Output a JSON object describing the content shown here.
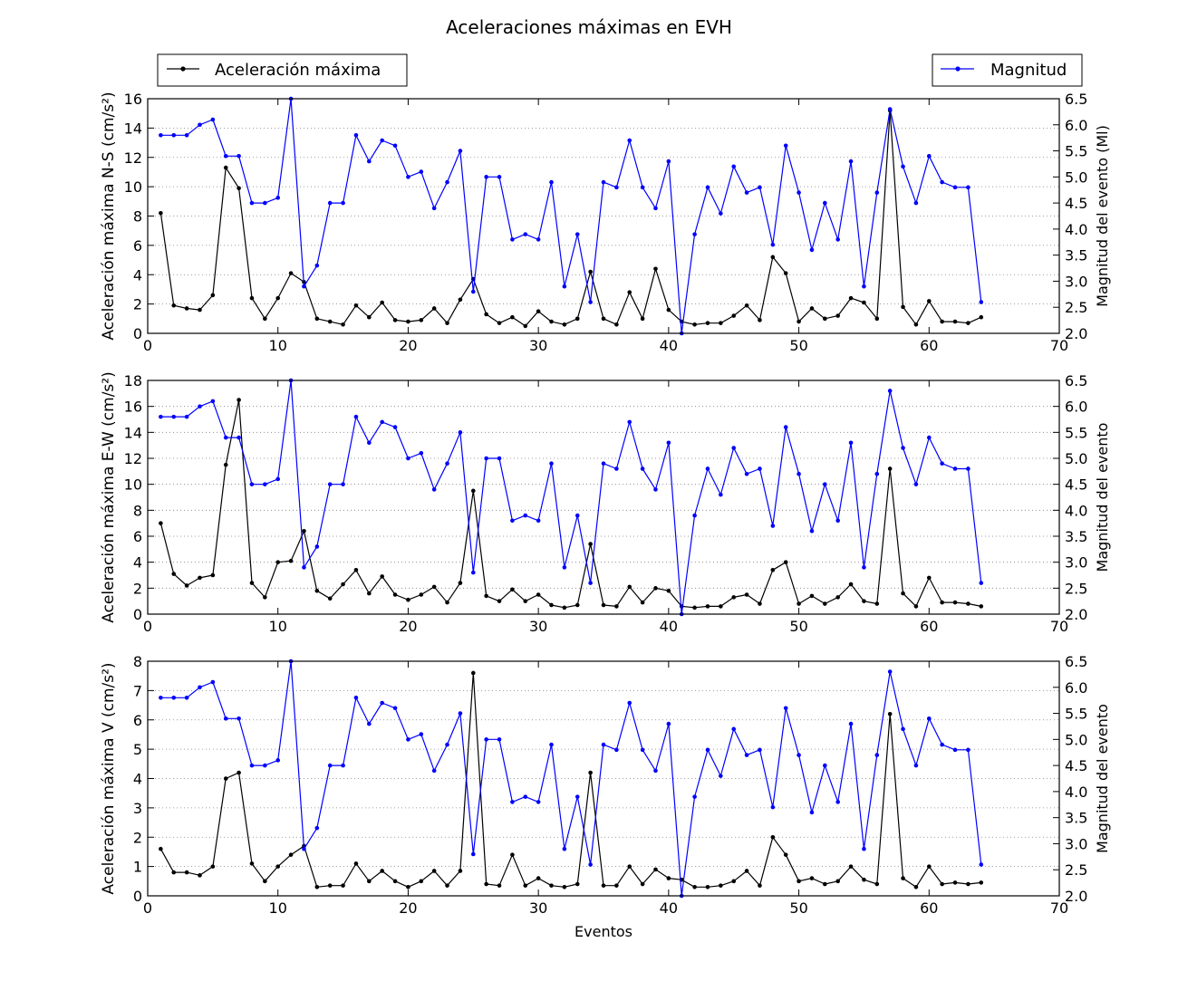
{
  "figure": {
    "title": "Aceleraciones máximas en EVH",
    "xlabel": "Eventos",
    "legend_left": "Aceleración máxima",
    "legend_right": "Magnitud",
    "colors": {
      "acceleration": "#000000",
      "magnitude": "#0000ff",
      "grid": "#7f7f7f",
      "axes": "#000000"
    }
  },
  "chart_data": [
    {
      "type": "line",
      "title": "Aceleraciones máximas en EVH",
      "xlabel": "",
      "ylabel": "Aceleración máxima N-S (cm/s²)",
      "y2label": "Magnitud del evento (Ml)",
      "xlim": [
        0,
        70
      ],
      "ylim": [
        0,
        16
      ],
      "y2lim": [
        2.0,
        6.5
      ],
      "xticks": [
        0,
        10,
        20,
        30,
        40,
        50,
        60,
        70
      ],
      "yticks": [
        0,
        2,
        4,
        6,
        8,
        10,
        12,
        14,
        16
      ],
      "y2ticks": [
        "2.0",
        "2.5",
        "3.0",
        "3.5",
        "4.0",
        "4.5",
        "5.0",
        "5.5",
        "6.0",
        "6.5"
      ],
      "grid": "horizontal dotted",
      "series": [
        {
          "name": "Aceleración máxima",
          "axis": "left",
          "x": [
            1,
            2,
            3,
            4,
            5,
            6,
            7,
            8,
            9,
            10,
            11,
            12,
            13,
            14,
            15,
            16,
            17,
            18,
            19,
            20,
            21,
            22,
            23,
            24,
            25,
            26,
            27,
            28,
            29,
            30,
            31,
            32,
            33,
            34,
            35,
            36,
            37,
            38,
            39,
            40,
            41,
            42,
            43,
            44,
            45,
            46,
            47,
            48,
            49,
            50,
            51,
            52,
            53,
            54,
            55,
            56,
            57,
            58,
            59,
            60,
            61,
            62,
            63,
            64
          ],
          "values": [
            8.2,
            1.9,
            1.7,
            1.6,
            2.6,
            11.3,
            9.9,
            2.4,
            1.0,
            2.4,
            4.1,
            3.5,
            1.0,
            0.8,
            0.6,
            1.9,
            1.1,
            2.1,
            0.9,
            0.8,
            0.9,
            1.7,
            0.7,
            2.3,
            3.7,
            1.3,
            0.7,
            1.1,
            0.5,
            1.5,
            0.8,
            0.6,
            1.0,
            4.2,
            1.0,
            0.6,
            2.8,
            1.0,
            4.4,
            1.6,
            0.8,
            0.6,
            0.7,
            0.7,
            1.2,
            1.9,
            0.9,
            5.2,
            4.1,
            0.8,
            1.7,
            1.0,
            1.2,
            2.4,
            2.1,
            1.0,
            15.2,
            1.8,
            0.6,
            2.2,
            0.8,
            0.8,
            0.7,
            1.1
          ]
        },
        {
          "name": "Magnitud",
          "axis": "right",
          "x": [
            1,
            2,
            3,
            4,
            5,
            6,
            7,
            8,
            9,
            10,
            11,
            12,
            13,
            14,
            15,
            16,
            17,
            18,
            19,
            20,
            21,
            22,
            23,
            24,
            25,
            26,
            27,
            28,
            29,
            30,
            31,
            32,
            33,
            34,
            35,
            36,
            37,
            38,
            39,
            40,
            41,
            42,
            43,
            44,
            45,
            46,
            47,
            48,
            49,
            50,
            51,
            52,
            53,
            54,
            55,
            56,
            57,
            58,
            59,
            60,
            61,
            62,
            63,
            64
          ],
          "values": [
            5.8,
            5.8,
            5.8,
            6.0,
            6.1,
            5.4,
            5.4,
            4.5,
            4.5,
            4.6,
            6.5,
            2.9,
            3.3,
            4.5,
            4.5,
            5.8,
            5.3,
            5.7,
            5.6,
            5.0,
            5.1,
            4.4,
            4.9,
            5.5,
            2.8,
            5.0,
            5.0,
            3.8,
            3.9,
            3.8,
            4.9,
            2.9,
            3.9,
            2.6,
            4.9,
            4.8,
            5.7,
            4.8,
            4.4,
            5.3,
            2.0,
            3.9,
            4.8,
            4.3,
            5.2,
            4.7,
            4.8,
            3.7,
            5.6,
            4.7,
            3.6,
            4.5,
            3.8,
            5.3,
            2.9,
            4.7,
            6.3,
            5.2,
            4.5,
            5.4,
            4.9,
            4.8,
            4.8,
            2.6
          ]
        }
      ]
    },
    {
      "type": "line",
      "xlabel": "",
      "ylabel": "Aceleración máxima E-W (cm/s²)",
      "y2label": "Magnitud del evento",
      "xlim": [
        0,
        70
      ],
      "ylim": [
        0,
        18
      ],
      "y2lim": [
        2.0,
        6.5
      ],
      "xticks": [
        0,
        10,
        20,
        30,
        40,
        50,
        60,
        70
      ],
      "yticks": [
        0,
        2,
        4,
        6,
        8,
        10,
        12,
        14,
        16,
        18
      ],
      "y2ticks": [
        "2.0",
        "2.5",
        "3.0",
        "3.5",
        "4.0",
        "4.5",
        "5.0",
        "5.5",
        "6.0",
        "6.5"
      ],
      "grid": "horizontal dotted",
      "series": [
        {
          "name": "Aceleración máxima",
          "axis": "left",
          "x": [
            1,
            2,
            3,
            4,
            5,
            6,
            7,
            8,
            9,
            10,
            11,
            12,
            13,
            14,
            15,
            16,
            17,
            18,
            19,
            20,
            21,
            22,
            23,
            24,
            25,
            26,
            27,
            28,
            29,
            30,
            31,
            32,
            33,
            34,
            35,
            36,
            37,
            38,
            39,
            40,
            41,
            42,
            43,
            44,
            45,
            46,
            47,
            48,
            49,
            50,
            51,
            52,
            53,
            54,
            55,
            56,
            57,
            58,
            59,
            60,
            61,
            62,
            63,
            64
          ],
          "values": [
            7.0,
            3.1,
            2.2,
            2.8,
            3.0,
            11.5,
            16.5,
            2.4,
            1.3,
            4.0,
            4.1,
            6.4,
            1.8,
            1.2,
            2.3,
            3.4,
            1.6,
            2.9,
            1.5,
            1.1,
            1.5,
            2.1,
            0.9,
            2.4,
            9.5,
            1.4,
            1.0,
            1.9,
            1.0,
            1.5,
            0.7,
            0.5,
            0.7,
            5.4,
            0.7,
            0.6,
            2.1,
            0.9,
            2.0,
            1.8,
            0.6,
            0.5,
            0.6,
            0.6,
            1.3,
            1.5,
            0.8,
            3.4,
            4.0,
            0.8,
            1.4,
            0.8,
            1.3,
            2.3,
            1.0,
            0.8,
            11.2,
            1.6,
            0.6,
            2.8,
            0.9,
            0.9,
            0.8,
            0.6
          ]
        },
        {
          "name": "Magnitud",
          "axis": "right",
          "x": [
            1,
            2,
            3,
            4,
            5,
            6,
            7,
            8,
            9,
            10,
            11,
            12,
            13,
            14,
            15,
            16,
            17,
            18,
            19,
            20,
            21,
            22,
            23,
            24,
            25,
            26,
            27,
            28,
            29,
            30,
            31,
            32,
            33,
            34,
            35,
            36,
            37,
            38,
            39,
            40,
            41,
            42,
            43,
            44,
            45,
            46,
            47,
            48,
            49,
            50,
            51,
            52,
            53,
            54,
            55,
            56,
            57,
            58,
            59,
            60,
            61,
            62,
            63,
            64
          ],
          "values": [
            5.8,
            5.8,
            5.8,
            6.0,
            6.1,
            5.4,
            5.4,
            4.5,
            4.5,
            4.6,
            6.5,
            2.9,
            3.3,
            4.5,
            4.5,
            5.8,
            5.3,
            5.7,
            5.6,
            5.0,
            5.1,
            4.4,
            4.9,
            5.5,
            2.8,
            5.0,
            5.0,
            3.8,
            3.9,
            3.8,
            4.9,
            2.9,
            3.9,
            2.6,
            4.9,
            4.8,
            5.7,
            4.8,
            4.4,
            5.3,
            2.0,
            3.9,
            4.8,
            4.3,
            5.2,
            4.7,
            4.8,
            3.7,
            5.6,
            4.7,
            3.6,
            4.5,
            3.8,
            5.3,
            2.9,
            4.7,
            6.3,
            5.2,
            4.5,
            5.4,
            4.9,
            4.8,
            4.8,
            2.6
          ]
        }
      ]
    },
    {
      "type": "line",
      "xlabel": "Eventos",
      "ylabel": "Aceleración máxima V (cm/s²)",
      "y2label": "Magnitud del evento",
      "xlim": [
        0,
        70
      ],
      "ylim": [
        0,
        8
      ],
      "y2lim": [
        2.0,
        6.5
      ],
      "xticks": [
        0,
        10,
        20,
        30,
        40,
        50,
        60,
        70
      ],
      "yticks": [
        0,
        1,
        2,
        3,
        4,
        5,
        6,
        7,
        8
      ],
      "y2ticks": [
        "2.0",
        "2.5",
        "3.0",
        "3.5",
        "4.0",
        "4.5",
        "5.0",
        "5.5",
        "6.0",
        "6.5"
      ],
      "grid": "horizontal dotted",
      "series": [
        {
          "name": "Aceleración máxima",
          "axis": "left",
          "x": [
            1,
            2,
            3,
            4,
            5,
            6,
            7,
            8,
            9,
            10,
            11,
            12,
            13,
            14,
            15,
            16,
            17,
            18,
            19,
            20,
            21,
            22,
            23,
            24,
            25,
            26,
            27,
            28,
            29,
            30,
            31,
            32,
            33,
            34,
            35,
            36,
            37,
            38,
            39,
            40,
            41,
            42,
            43,
            44,
            45,
            46,
            47,
            48,
            49,
            50,
            51,
            52,
            53,
            54,
            55,
            56,
            57,
            58,
            59,
            60,
            61,
            62,
            63,
            64
          ],
          "values": [
            1.6,
            0.8,
            0.8,
            0.7,
            1.0,
            4.0,
            4.2,
            1.1,
            0.5,
            1.0,
            1.4,
            1.7,
            0.3,
            0.35,
            0.35,
            1.1,
            0.5,
            0.85,
            0.5,
            0.3,
            0.5,
            0.85,
            0.35,
            0.85,
            7.6,
            0.4,
            0.35,
            1.4,
            0.35,
            0.6,
            0.35,
            0.3,
            0.4,
            4.2,
            0.35,
            0.35,
            1.0,
            0.4,
            0.9,
            0.6,
            0.55,
            0.3,
            0.3,
            0.35,
            0.5,
            0.85,
            0.35,
            2.0,
            1.4,
            0.5,
            0.6,
            0.4,
            0.5,
            1.0,
            0.55,
            0.4,
            6.2,
            0.6,
            0.3,
            1.0,
            0.4,
            0.45,
            0.4,
            0.45
          ]
        },
        {
          "name": "Magnitud",
          "axis": "right",
          "x": [
            1,
            2,
            3,
            4,
            5,
            6,
            7,
            8,
            9,
            10,
            11,
            12,
            13,
            14,
            15,
            16,
            17,
            18,
            19,
            20,
            21,
            22,
            23,
            24,
            25,
            26,
            27,
            28,
            29,
            30,
            31,
            32,
            33,
            34,
            35,
            36,
            37,
            38,
            39,
            40,
            41,
            42,
            43,
            44,
            45,
            46,
            47,
            48,
            49,
            50,
            51,
            52,
            53,
            54,
            55,
            56,
            57,
            58,
            59,
            60,
            61,
            62,
            63,
            64
          ],
          "values": [
            5.8,
            5.8,
            5.8,
            6.0,
            6.1,
            5.4,
            5.4,
            4.5,
            4.5,
            4.6,
            6.5,
            2.9,
            3.3,
            4.5,
            4.5,
            5.8,
            5.3,
            5.7,
            5.6,
            5.0,
            5.1,
            4.4,
            4.9,
            5.5,
            2.8,
            5.0,
            5.0,
            3.8,
            3.9,
            3.8,
            4.9,
            2.9,
            3.9,
            2.6,
            4.9,
            4.8,
            5.7,
            4.8,
            4.4,
            5.3,
            2.0,
            3.9,
            4.8,
            4.3,
            5.2,
            4.7,
            4.8,
            3.7,
            5.6,
            4.7,
            3.6,
            4.5,
            3.8,
            5.3,
            2.9,
            4.7,
            6.3,
            5.2,
            4.5,
            5.4,
            4.9,
            4.8,
            4.8,
            2.6
          ]
        }
      ]
    }
  ]
}
